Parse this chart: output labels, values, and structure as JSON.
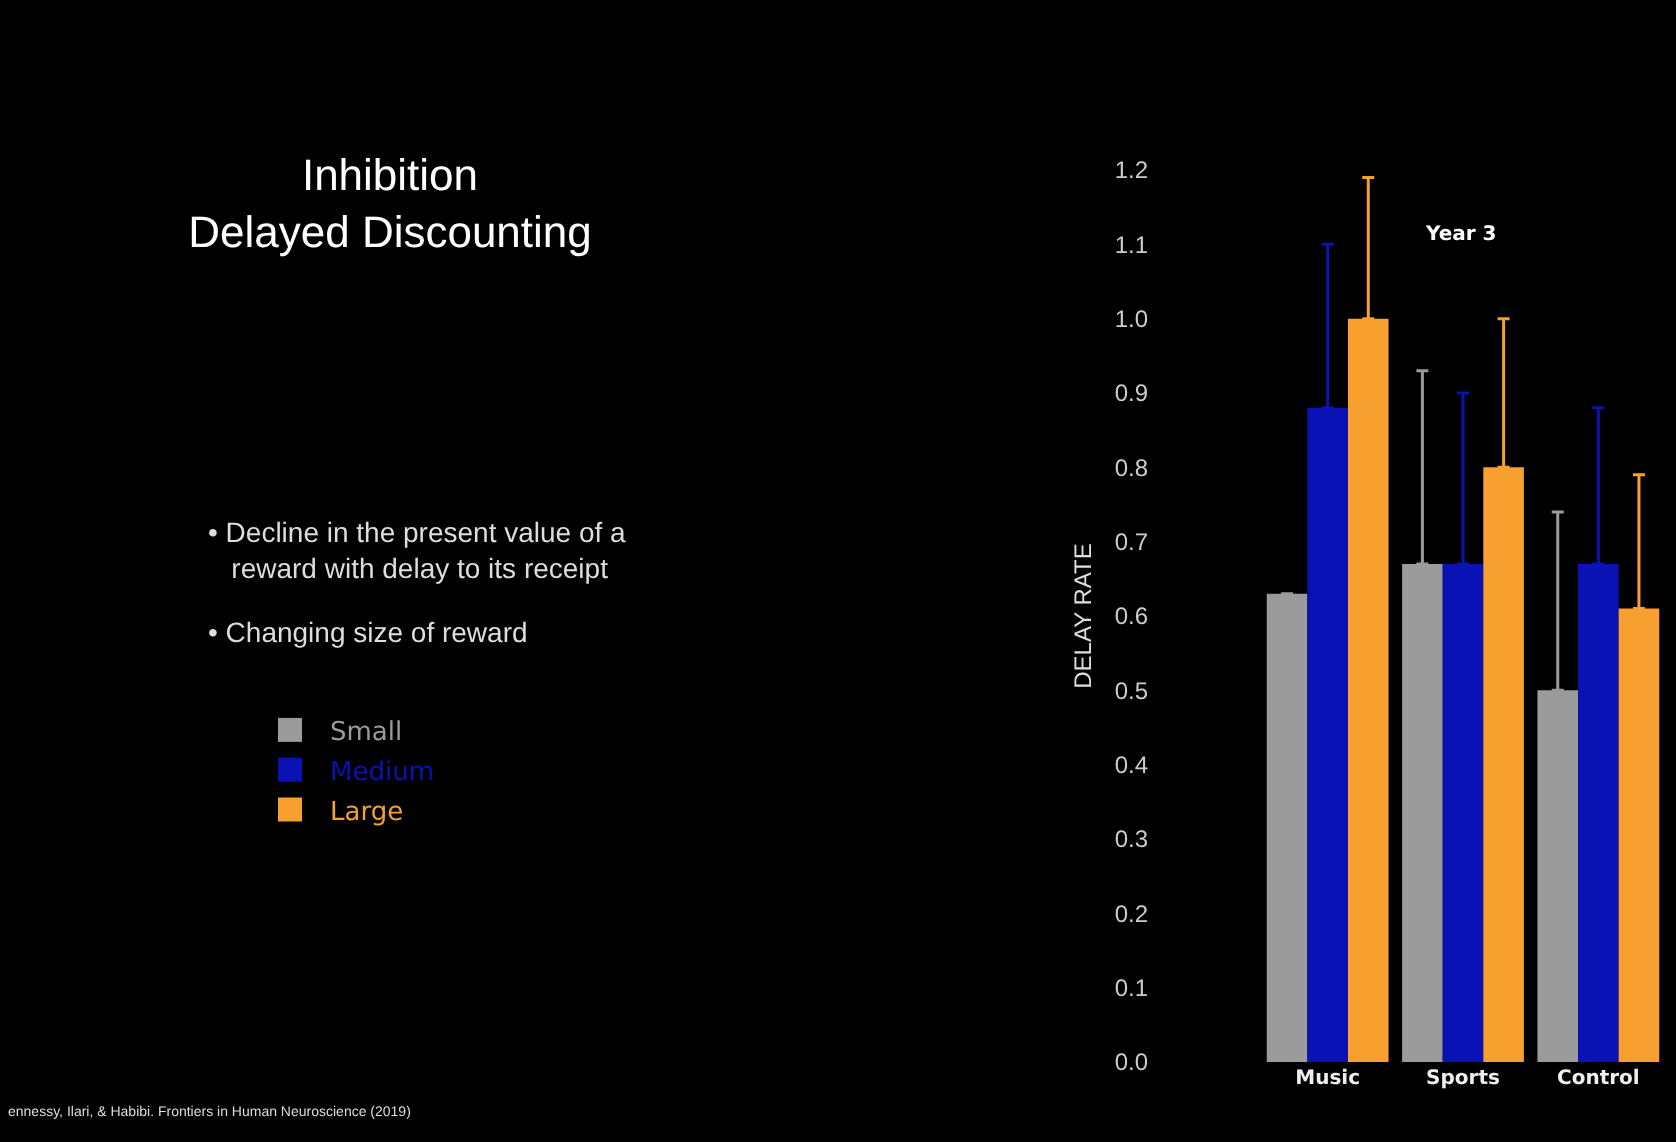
{
  "chart_data": {
    "type": "bar",
    "title": "Inhibition\nDelayed Discounting",
    "subtitle": "Year 3",
    "ylabel": "DELAY RATE",
    "categories": [
      "Music",
      "Sports",
      "Control"
    ],
    "series": [
      {
        "name": "Small",
        "color": "#9b9b9b",
        "values": [
          0.63,
          0.67,
          0.5
        ],
        "errors": [
          null,
          [
            0.67,
            0.93
          ],
          [
            0.5,
            0.74
          ]
        ]
      },
      {
        "name": "Medium",
        "color": "#0b12b5",
        "values": [
          0.88,
          0.67,
          0.67
        ],
        "errors": [
          [
            0.88,
            1.1
          ],
          [
            0.67,
            0.9
          ],
          [
            0.67,
            0.88
          ]
        ]
      },
      {
        "name": "Large",
        "color": "#f7a030",
        "values": [
          1.0,
          0.8,
          0.61
        ],
        "errors": [
          [
            1.0,
            1.19
          ],
          [
            0.8,
            1.0
          ],
          [
            0.61,
            0.79
          ]
        ]
      }
    ],
    "ylim": [
      0,
      1.2
    ],
    "yticks": [
      {
        "value": 0,
        "label": "0.0"
      },
      0.1,
      0.2,
      0.3,
      0.4,
      0.5,
      0.6,
      0.7,
      0.8,
      0.9,
      {
        "value": 1,
        "label": "1.0"
      },
      1.1,
      1.2
    ],
    "grid": false,
    "legend": "left",
    "annotations": [
      "• Decline in the present value of a\n   reward with delay to its receipt",
      "• Changing size of reward",
      "ennessy, Ilari, & Habibi. Frontiers in Human Neuroscience (2019)"
    ]
  }
}
